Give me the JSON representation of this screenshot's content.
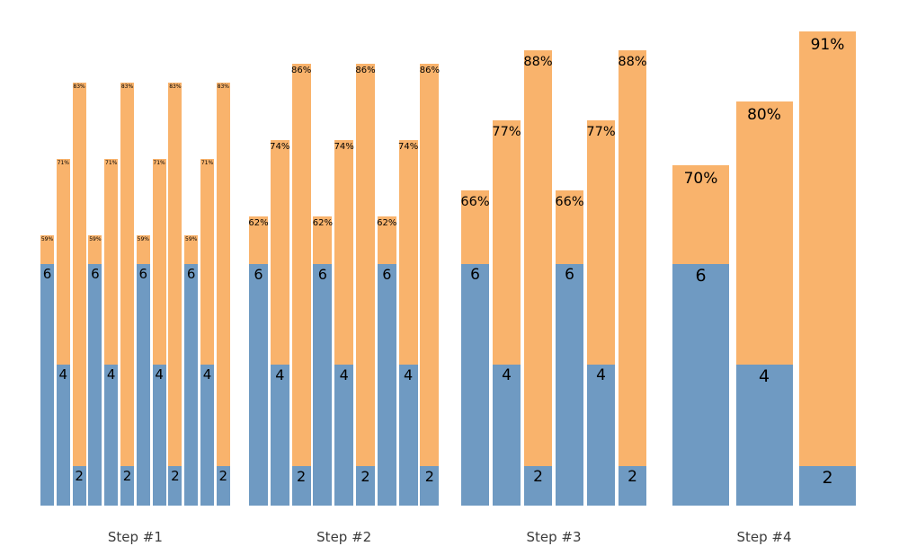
{
  "chart_data": {
    "type": "bar",
    "variant": "grouped-stacked-successive-halving",
    "title": "",
    "xlabel": "",
    "ylabel": "",
    "legend": "none",
    "grid": false,
    "axes_visible": false,
    "background": "#ffffff",
    "colors": {
      "blue_segment": "#6f9ac2",
      "orange_segment": "#f9b36c",
      "bar_label": "#000000",
      "group_label": "#3c3c3c"
    },
    "groups": [
      {
        "label": "Step #1",
        "bars": [
          {
            "value": 6,
            "value_label": "6",
            "pct": 59,
            "pct_label": "59%"
          },
          {
            "value": 4,
            "value_label": "4",
            "pct": 71,
            "pct_label": "71%"
          },
          {
            "value": 2,
            "value_label": "2",
            "pct": 83,
            "pct_label": "83%"
          },
          {
            "value": 6,
            "value_label": "6",
            "pct": 59,
            "pct_label": "59%"
          },
          {
            "value": 4,
            "value_label": "4",
            "pct": 71,
            "pct_label": "71%"
          },
          {
            "value": 2,
            "value_label": "2",
            "pct": 83,
            "pct_label": "83%"
          },
          {
            "value": 6,
            "value_label": "6",
            "pct": 59,
            "pct_label": "59%"
          },
          {
            "value": 4,
            "value_label": "4",
            "pct": 71,
            "pct_label": "71%"
          },
          {
            "value": 2,
            "value_label": "2",
            "pct": 83,
            "pct_label": "83%"
          },
          {
            "value": 6,
            "value_label": "6",
            "pct": 59,
            "pct_label": "59%"
          },
          {
            "value": 4,
            "value_label": "4",
            "pct": 71,
            "pct_label": "71%"
          },
          {
            "value": 2,
            "value_label": "2",
            "pct": 83,
            "pct_label": "83%"
          }
        ]
      },
      {
        "label": "Step #2",
        "bars": [
          {
            "value": 6,
            "value_label": "6",
            "pct": 62,
            "pct_label": "62%"
          },
          {
            "value": 4,
            "value_label": "4",
            "pct": 74,
            "pct_label": "74%"
          },
          {
            "value": 2,
            "value_label": "2",
            "pct": 86,
            "pct_label": "86%"
          },
          {
            "value": 6,
            "value_label": "6",
            "pct": 62,
            "pct_label": "62%"
          },
          {
            "value": 4,
            "value_label": "4",
            "pct": 74,
            "pct_label": "74%"
          },
          {
            "value": 2,
            "value_label": "2",
            "pct": 86,
            "pct_label": "86%"
          },
          {
            "value": 6,
            "value_label": "6",
            "pct": 62,
            "pct_label": "62%"
          },
          {
            "value": 4,
            "value_label": "4",
            "pct": 74,
            "pct_label": "74%"
          },
          {
            "value": 2,
            "value_label": "2",
            "pct": 86,
            "pct_label": "86%"
          }
        ]
      },
      {
        "label": "Step #3",
        "bars": [
          {
            "value": 6,
            "value_label": "6",
            "pct": 66,
            "pct_label": "66%"
          },
          {
            "value": 4,
            "value_label": "4",
            "pct": 77,
            "pct_label": "77%"
          },
          {
            "value": 2,
            "value_label": "2",
            "pct": 88,
            "pct_label": "88%"
          },
          {
            "value": 6,
            "value_label": "6",
            "pct": 66,
            "pct_label": "66%"
          },
          {
            "value": 4,
            "value_label": "4",
            "pct": 77,
            "pct_label": "77%"
          },
          {
            "value": 2,
            "value_label": "2",
            "pct": 88,
            "pct_label": "88%"
          }
        ]
      },
      {
        "label": "Step #4",
        "bars": [
          {
            "value": 6,
            "value_label": "6",
            "pct": 70,
            "pct_label": "70%"
          },
          {
            "value": 4,
            "value_label": "4",
            "pct": 80,
            "pct_label": "80%"
          },
          {
            "value": 2,
            "value_label": "2",
            "pct": 91,
            "pct_label": "91%"
          }
        ]
      }
    ]
  }
}
